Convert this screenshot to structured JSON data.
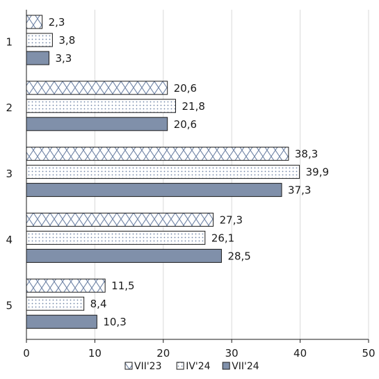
{
  "chart_data": {
    "type": "bar",
    "orientation": "horizontal",
    "categories": [
      "1",
      "2",
      "3",
      "4",
      "5"
    ],
    "series": [
      {
        "name": "VII'23",
        "pattern": "crosshatch",
        "values": [
          2.3,
          20.6,
          38.3,
          27.3,
          11.5
        ],
        "labels": [
          "2,3",
          "20,6",
          "38,3",
          "27,3",
          "11,5"
        ]
      },
      {
        "name": "IV'24",
        "pattern": "dots",
        "values": [
          3.8,
          21.8,
          39.9,
          26.1,
          8.4
        ],
        "labels": [
          "3,8",
          "21,8",
          "39,9",
          "26,1",
          "8,4"
        ]
      },
      {
        "name": "VII'24",
        "pattern": "solid",
        "values": [
          3.3,
          20.6,
          37.3,
          28.5,
          10.3
        ],
        "labels": [
          "3,3",
          "20,6",
          "37,3",
          "28,5",
          "10,3"
        ]
      }
    ],
    "xlim": [
      0,
      50
    ],
    "xticks": [
      0,
      10,
      20,
      30,
      40,
      50
    ],
    "xtick_labels": [
      "0",
      "10",
      "20",
      "30",
      "40",
      "50"
    ],
    "grid": true,
    "grid_axis": "x",
    "legend_position": "bottom",
    "colors": {
      "solid_fill": "#8090aa",
      "pattern_color": "#6f84a6",
      "bar_stroke": "#1a1a1a",
      "grid": "#d9d9d9"
    }
  }
}
